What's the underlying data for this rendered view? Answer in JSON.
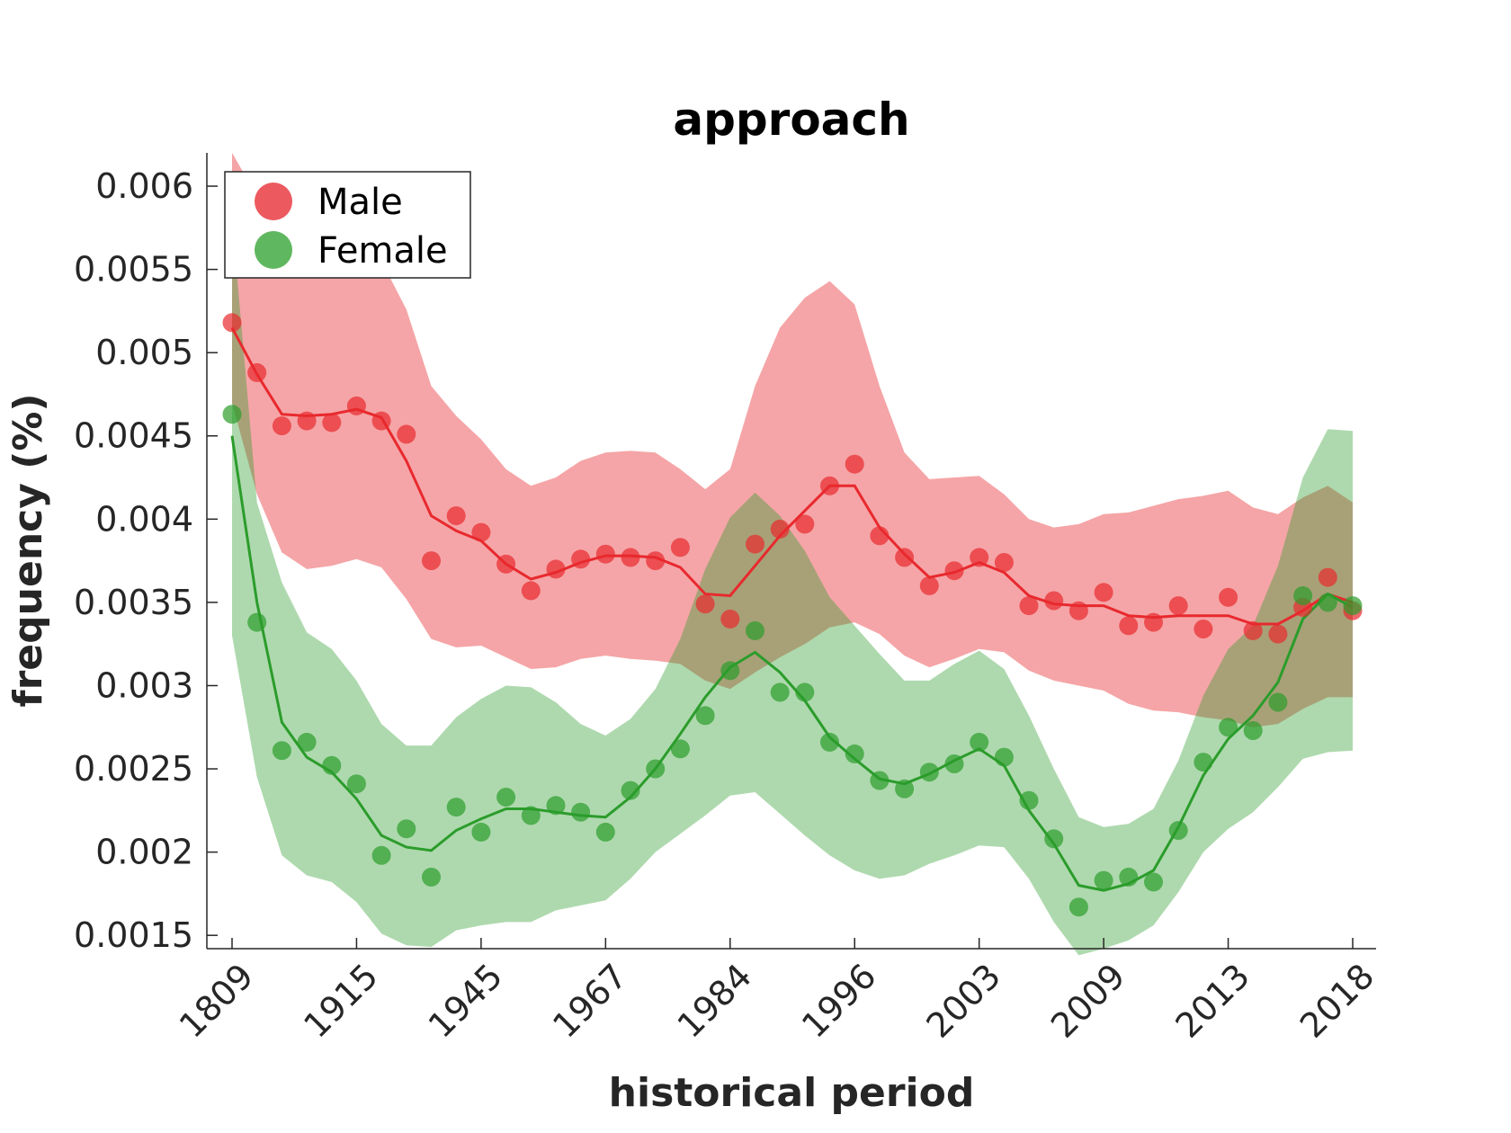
{
  "chart_data": {
    "type": "line",
    "title": "approach",
    "xlabel": "historical period",
    "ylabel": "frequency (%)",
    "x_tick_labels": [
      "1809",
      "1915",
      "1945",
      "1967",
      "1984",
      "1996",
      "2003",
      "2009",
      "2013",
      "2018"
    ],
    "y_ticks": [
      0.0015,
      0.002,
      0.0025,
      0.003,
      0.0035,
      0.004,
      0.0045,
      0.005,
      0.0055,
      0.006
    ],
    "y_tick_labels": [
      "0.0015",
      "0.002",
      "0.0025",
      "0.003",
      "0.0035",
      "0.004",
      "0.0045",
      "0.005",
      "0.0055",
      "0.006"
    ],
    "ylim": [
      0.00142,
      0.0062
    ],
    "legend_position": "top-left",
    "n_points": 46,
    "series": [
      {
        "name": "Male",
        "color": "#e8292e",
        "marker_color": "#ec5a5f",
        "band_color": "#f4a3a5",
        "points": [
          0.00518,
          0.00488,
          0.00456,
          0.00459,
          0.00458,
          0.00468,
          0.00459,
          0.00451,
          0.00375,
          0.00402,
          0.00392,
          0.00373,
          0.00357,
          0.0037,
          0.00376,
          0.00379,
          0.00377,
          0.00375,
          0.00383,
          0.00349,
          0.0034,
          0.00385,
          0.00394,
          0.00397,
          0.0042,
          0.00433,
          0.0039,
          0.00377,
          0.0036,
          0.00369,
          0.00377,
          0.00374,
          0.00348,
          0.00351,
          0.00345,
          0.00356,
          0.00336,
          0.00338,
          0.00348,
          0.00334,
          0.00353,
          0.00333,
          0.00331,
          0.00347,
          0.00365,
          0.00345
        ],
        "fit": [
          0.00515,
          0.00487,
          0.00463,
          0.00462,
          0.00463,
          0.00466,
          0.00461,
          0.00435,
          0.00402,
          0.00393,
          0.00387,
          0.00373,
          0.00364,
          0.00368,
          0.00374,
          0.00378,
          0.00378,
          0.00377,
          0.00371,
          0.00355,
          0.00354,
          0.00372,
          0.0039,
          0.00405,
          0.0042,
          0.0042,
          0.00395,
          0.00379,
          0.00365,
          0.00368,
          0.00374,
          0.00368,
          0.00354,
          0.00349,
          0.00348,
          0.00348,
          0.00342,
          0.00341,
          0.00342,
          0.00342,
          0.00342,
          0.00337,
          0.00337,
          0.00345,
          0.00355,
          0.0035
        ],
        "upper": [
          0.0062,
          0.00594,
          0.0058,
          0.00578,
          0.0058,
          0.0057,
          0.00555,
          0.00526,
          0.0048,
          0.00462,
          0.00448,
          0.0043,
          0.0042,
          0.00425,
          0.00435,
          0.0044,
          0.00441,
          0.0044,
          0.0043,
          0.00418,
          0.0043,
          0.0048,
          0.00515,
          0.00533,
          0.00543,
          0.00529,
          0.0048,
          0.0044,
          0.00424,
          0.00425,
          0.00426,
          0.00415,
          0.004,
          0.00395,
          0.00397,
          0.00403,
          0.00404,
          0.00408,
          0.00412,
          0.00414,
          0.00417,
          0.00407,
          0.00403,
          0.00413,
          0.0042,
          0.0041
        ],
        "lower": [
          0.0047,
          0.00415,
          0.0038,
          0.0037,
          0.00372,
          0.00376,
          0.00371,
          0.00352,
          0.00328,
          0.00323,
          0.00324,
          0.00317,
          0.0031,
          0.00311,
          0.00316,
          0.00318,
          0.00316,
          0.00315,
          0.00313,
          0.00303,
          0.00298,
          0.00308,
          0.00317,
          0.00325,
          0.00335,
          0.00338,
          0.00331,
          0.00318,
          0.00311,
          0.00316,
          0.00322,
          0.0032,
          0.00309,
          0.00303,
          0.003,
          0.00297,
          0.00289,
          0.00285,
          0.00284,
          0.00281,
          0.00279,
          0.00275,
          0.00277,
          0.00286,
          0.00293,
          0.00293
        ]
      },
      {
        "name": "Female",
        "color": "#2b9c2b",
        "marker_color": "#5fb85f",
        "band_color": "#acd8a8",
        "points": [
          0.00463,
          0.00338,
          0.00261,
          0.00266,
          0.00252,
          0.00241,
          0.00198,
          0.00214,
          0.00185,
          0.00227,
          0.00212,
          0.00233,
          0.00222,
          0.00228,
          0.00224,
          0.00212,
          0.00237,
          0.0025,
          0.00262,
          0.00282,
          0.00309,
          0.00333,
          0.00296,
          0.00296,
          0.00266,
          0.00259,
          0.00243,
          0.00238,
          0.00248,
          0.00253,
          0.00266,
          0.00257,
          0.00231,
          0.00208,
          0.00167,
          0.00183,
          0.00185,
          0.00182,
          0.00213,
          0.00254,
          0.00275,
          0.00273,
          0.0029,
          0.00354,
          0.0035,
          0.00348
        ],
        "fit": [
          0.0045,
          0.0035,
          0.00278,
          0.00257,
          0.00248,
          0.00232,
          0.0021,
          0.00203,
          0.00201,
          0.00213,
          0.0022,
          0.00226,
          0.00226,
          0.00224,
          0.00222,
          0.00221,
          0.00233,
          0.0025,
          0.00271,
          0.00293,
          0.00311,
          0.0032,
          0.00308,
          0.00291,
          0.00269,
          0.00256,
          0.00244,
          0.00241,
          0.00247,
          0.00255,
          0.00262,
          0.00252,
          0.00225,
          0.00205,
          0.0018,
          0.00177,
          0.00181,
          0.00189,
          0.00215,
          0.00246,
          0.00268,
          0.00282,
          0.00302,
          0.0034,
          0.00355,
          0.00347
        ],
        "upper": [
          0.0058,
          0.0041,
          0.00362,
          0.00332,
          0.00322,
          0.00303,
          0.00277,
          0.00264,
          0.00264,
          0.00281,
          0.00292,
          0.003,
          0.00299,
          0.0029,
          0.00277,
          0.0027,
          0.0028,
          0.00298,
          0.00328,
          0.0037,
          0.00401,
          0.00416,
          0.00402,
          0.00381,
          0.00353,
          0.00336,
          0.00319,
          0.00303,
          0.00303,
          0.00313,
          0.00321,
          0.0031,
          0.00282,
          0.0025,
          0.00221,
          0.00215,
          0.00217,
          0.00226,
          0.00255,
          0.00294,
          0.00322,
          0.00336,
          0.00372,
          0.00425,
          0.00454,
          0.00453
        ],
        "lower": [
          0.0033,
          0.00245,
          0.00198,
          0.00186,
          0.00182,
          0.0017,
          0.00151,
          0.00144,
          0.00143,
          0.00153,
          0.00156,
          0.00158,
          0.00158,
          0.00165,
          0.00168,
          0.00171,
          0.00184,
          0.002,
          0.00211,
          0.00222,
          0.00234,
          0.00236,
          0.00223,
          0.0021,
          0.00198,
          0.00189,
          0.00184,
          0.00186,
          0.00193,
          0.00198,
          0.00204,
          0.00203,
          0.00184,
          0.00158,
          0.00138,
          0.00142,
          0.00147,
          0.00156,
          0.00176,
          0.002,
          0.00214,
          0.00224,
          0.00239,
          0.00256,
          0.0026,
          0.00261
        ]
      }
    ]
  }
}
